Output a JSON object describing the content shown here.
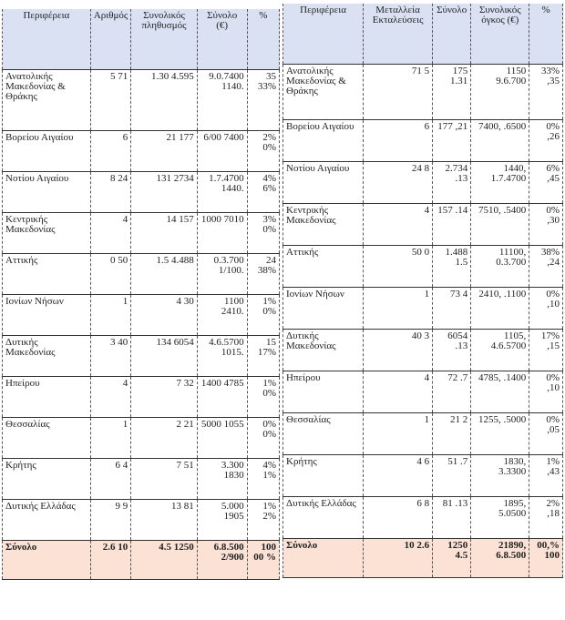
{
  "left_table": {
    "headers": [
      "Περιφέρεια",
      "Αριθμός",
      "Συνολικός πληθυσμός",
      "Σύνολο (€)",
      "%"
    ],
    "rows": [
      [
        "Ανατολικής Μακεδονίας & Θράκης",
        "5 71",
        "1.30 4.595",
        "9.0.7400 1140.",
        "35 33%"
      ],
      [
        "Βορείου Αιγαίου",
        "6",
        "21 177",
        "6/00 7400",
        "2% 0%"
      ],
      [
        "Νοτίου Αιγαίου",
        "8 24",
        "131 2734",
        "1.7.4700 1440.",
        "4% 6%"
      ],
      [
        "Κεντρικής Μακεδονίας",
        "4",
        "14 157",
        "1000 7010",
        "3% 0%"
      ],
      [
        "Αττικής",
        "0 50",
        "1.5 4.488",
        "0.3.700 1/100.",
        "24 38%"
      ],
      [
        "Ιονίων Νήσων",
        "1",
        "4 30",
        "1100 2410.",
        "1% 0%"
      ],
      [
        "Δυτικής Μακεδονίας",
        "3 40",
        "134 6054",
        "4.6.5700 1015.",
        "15 17%"
      ],
      [
        "Ηπείρου",
        "4",
        "7 32",
        "1400 4785",
        "1% 0%"
      ],
      [
        "Θεσσαλίας",
        "1",
        "2 21",
        "5000 1055",
        "0% 0%"
      ],
      [
        "Κρήτης",
        "6 4",
        "7 51",
        "3.300 1830",
        "4% 1%"
      ],
      [
        "Δυτικής Ελλάδας",
        "9 9",
        "13 81",
        "5.000 1905",
        "1% 2%"
      ]
    ],
    "total": [
      "Σύνολο",
      "2.6 10",
      "4.5 1250",
      "6.8.500 2/900",
      "100 00 %"
    ]
  },
  "right_table": {
    "headers": [
      "Περιφέρεια",
      "Μεταλλεία Εκταλεύσεις",
      "Σύνολο",
      "Συνολικός όγκος (€)",
      "%"
    ],
    "rows": [
      [
        "Ανατολικής Μακεδονίας & Θράκης",
        "71 5",
        "175 1.31",
        "1150 9.6.700",
        "33% ,35"
      ],
      [
        "Βορείου Αιγαίου",
        "6",
        "177 ,21",
        "7400, .6500",
        "0% ,26"
      ],
      [
        "Νοτίου Αιγαίου",
        "24 8",
        "2.734 .13",
        "1440, 1.7.4700",
        "6% ,45"
      ],
      [
        "Κεντρικής Μακεδονίας",
        "4",
        "157 .14",
        "7510, .5400",
        "0% ,30"
      ],
      [
        "Αττικής",
        "50 0",
        "1.488 1.5",
        "11100, 0.3.700",
        "38% ,24"
      ],
      [
        "Ιονίων Νήσων",
        "1",
        "73 4",
        "2410, .1100",
        "0% ,10"
      ],
      [
        "Δυτικής Μακεδονίας",
        "40 3",
        "6054 .13",
        "1105, 4.6.5700",
        "17% ,15"
      ],
      [
        "Ηπείρου",
        "4",
        "72 .7",
        "4785, .1400",
        "0% ,10"
      ],
      [
        "Θεσσαλίας",
        "1",
        "21 2",
        "1255, .5000",
        "0% ,05"
      ],
      [
        "Κρήτης",
        "4 6",
        "51 .7",
        "1830, 3.3300",
        "1% ,43"
      ],
      [
        "Δυτικής Ελλάδας",
        "6 8",
        "81 .13",
        "1895, 5.0500",
        "2% ,18"
      ]
    ],
    "total": [
      "Σύνολο",
      "10 2.6",
      "1250 4.5",
      "21890, 6.8.500",
      "00,% 100"
    ]
  }
}
